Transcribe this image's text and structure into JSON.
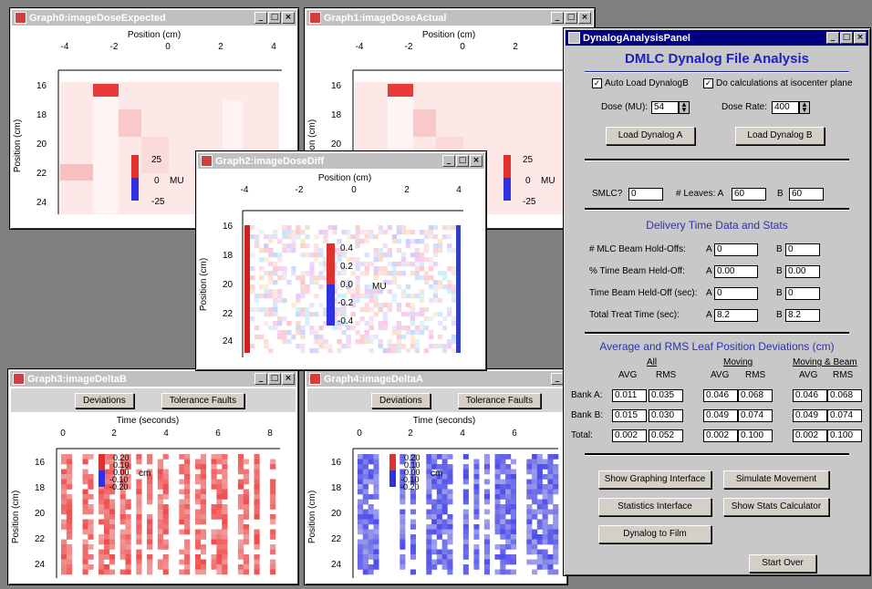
{
  "windows": {
    "graph0": {
      "title": "Graph0:imageDoseExpected"
    },
    "graph1": {
      "title": "Graph1:imageDoseActual"
    },
    "graph2": {
      "title": "Graph2:imageDoseDiff"
    },
    "graph3": {
      "title": "Graph3:imageDeltaB"
    },
    "graph4": {
      "title": "Graph4:imageDeltaA"
    },
    "panel": {
      "title": "DynalogAnalysisPanel"
    }
  },
  "window_buttons": {
    "minimize": "_",
    "maximize": "□",
    "close": "×"
  },
  "dose_plot": {
    "xlabel": "Position (cm)",
    "ylabel": "Position (cm)",
    "xticks": [
      "-4",
      "-2",
      "0",
      "2",
      "4"
    ],
    "yticks": [
      "16",
      "18",
      "20",
      "22",
      "24"
    ],
    "colorbar_ticks": [
      "25",
      "0",
      "-25"
    ],
    "colorbar_unit": "MU"
  },
  "diff_plot": {
    "xlabel": "Position (cm)",
    "ylabel": "Position (cm)",
    "xticks": [
      "-4",
      "-2",
      "0",
      "2",
      "4"
    ],
    "yticks": [
      "16",
      "18",
      "20",
      "22",
      "24"
    ],
    "colorbar_ticks": [
      "0.4",
      "0.2",
      "0.0",
      "-0.2",
      "-0.4"
    ],
    "colorbar_unit": "MU"
  },
  "delta_plot": {
    "xlabel": "Time (seconds)",
    "ylabel": "Position (cm)",
    "xticks": [
      "0",
      "2",
      "4",
      "6",
      "8"
    ],
    "yticks": [
      "16",
      "18",
      "20",
      "22",
      "24"
    ],
    "colorbar_ticks": [
      "0.20",
      "0.10",
      "0.00",
      "-0.10",
      "-0.20"
    ],
    "colorbar_unit": "cm"
  },
  "graph_toolbar": {
    "deviations": "Deviations",
    "tolerance_faults": "Tolerance Faults"
  },
  "panel": {
    "heading": "DMLC Dynalog File Analysis",
    "auto_load": {
      "label": "Auto Load DynalogB",
      "checked": true
    },
    "isocenter": {
      "label": "Do calculations at isocenter plane",
      "checked": true
    },
    "dose_mu_label": "Dose (MU):",
    "dose_mu": "54",
    "dose_rate_label": "Dose Rate:",
    "dose_rate": "400",
    "load_a": "Load Dynalog A",
    "load_b": "Load Dynalog B",
    "smlc_label": "SMLC?",
    "smlc": "0",
    "leaves_label": "# Leaves: A",
    "leaves_a": "60",
    "leaves_b_label": "B",
    "leaves_b": "60",
    "delivery_heading": "Delivery Time Data and Stats",
    "delivery_rows": [
      {
        "label": "# MLC Beam Hold-Offs:",
        "a": "0",
        "b": "0"
      },
      {
        "label": "% Time Beam Held-Off:",
        "a": "0.00",
        "b": "0.00"
      },
      {
        "label": "Time Beam Held-Off (sec):",
        "a": "0",
        "b": "0"
      },
      {
        "label": "Total Treat Time (sec):",
        "a": "8.2",
        "b": "8.2"
      }
    ],
    "a_label": "A",
    "b_label": "B",
    "rms_heading": "Average and RMS Leaf Position Deviations (cm)",
    "groups": [
      "All",
      "Moving",
      "Moving & Beam"
    ],
    "avg_label": "AVG",
    "rms_label": "RMS",
    "rows": [
      {
        "label": "Bank A:",
        "values": [
          "0.011",
          "0.035",
          "0.046",
          "0.068",
          "0.046",
          "0.068"
        ]
      },
      {
        "label": "Bank B:",
        "values": [
          "0.015",
          "0.030",
          "0.049",
          "0.074",
          "0.049",
          "0.074"
        ]
      },
      {
        "label": "Total:",
        "values": [
          "0.002",
          "0.052",
          "0.002",
          "0.100",
          "0.002",
          "0.100"
        ]
      }
    ],
    "btn_graphing": "Show Graphing Interface",
    "btn_simulate": "Simulate Movement",
    "btn_stats": "Statistics Interface",
    "btn_stats_calc": "Show Stats Calculator",
    "btn_film": "Dynalog to Film",
    "btn_start_over": "Start Over"
  },
  "colors": {
    "title_active": "#000080",
    "title_inactive": "#c0c0c0",
    "panel_heading": "#2020c0"
  }
}
